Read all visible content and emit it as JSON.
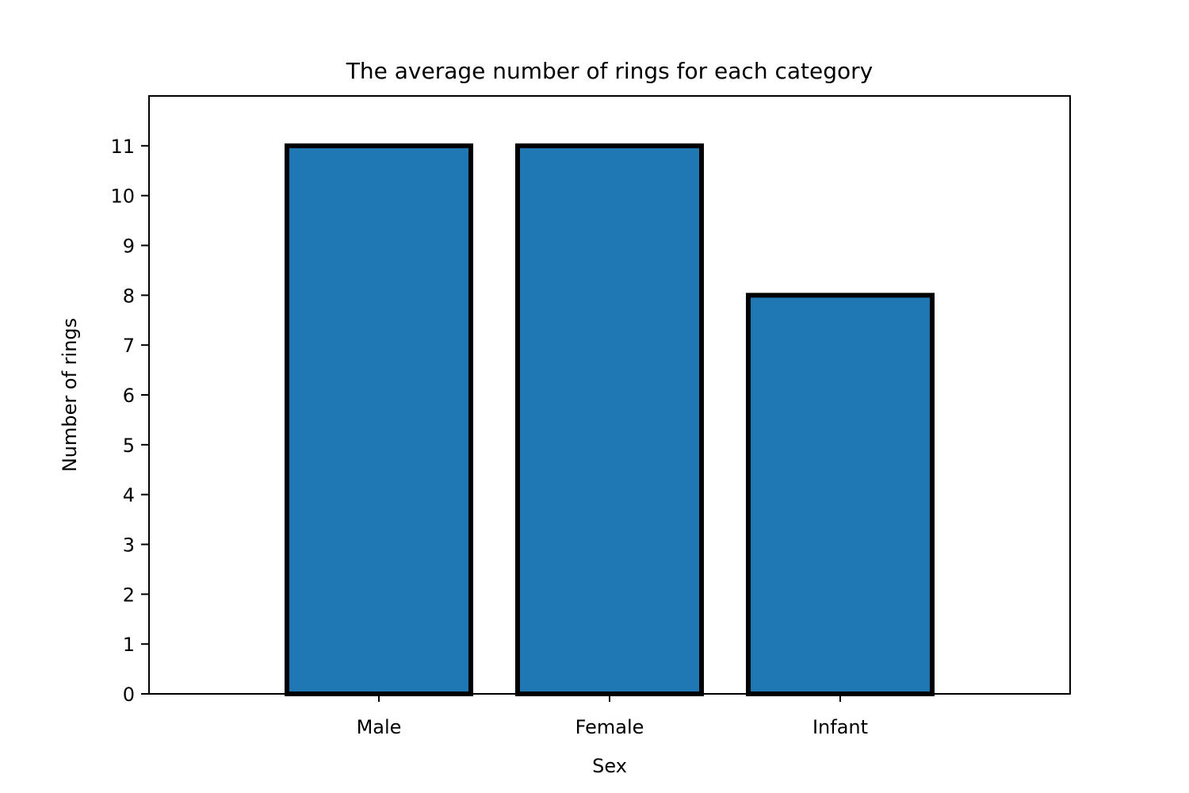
{
  "chart_data": {
    "type": "bar",
    "title": "The average number of rings for each category",
    "xlabel": "Sex",
    "ylabel": "Number of rings",
    "categories": [
      "Male",
      "Female",
      "Infant"
    ],
    "values": [
      11,
      11,
      8
    ],
    "ylim": [
      0,
      12
    ],
    "yticks": [
      0,
      1,
      2,
      3,
      4,
      5,
      6,
      7,
      8,
      9,
      10,
      11
    ],
    "grid": false,
    "colors": {
      "bar_fill": "#1f77b4",
      "bar_edge": "#000000",
      "axis": "#000000",
      "background": "#ffffff"
    }
  }
}
